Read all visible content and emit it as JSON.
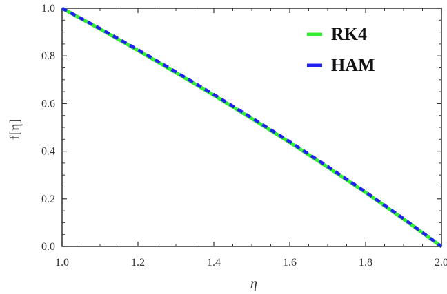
{
  "chart_data": {
    "type": "line",
    "title": "",
    "xlabel": "η",
    "ylabel": "f[η]",
    "xlim": [
      1.0,
      2.0
    ],
    "ylim": [
      0.0,
      1.0
    ],
    "grid": false,
    "legend_position": "top-right",
    "x_ticks": [
      "1.0",
      "1.2",
      "1.4",
      "1.6",
      "1.8",
      "2.0"
    ],
    "y_ticks": [
      "0.0",
      "0.2",
      "0.4",
      "0.6",
      "0.8",
      "1.0"
    ],
    "x": [
      1.0,
      1.1,
      1.2,
      1.3,
      1.4,
      1.5,
      1.6,
      1.7,
      1.8,
      1.9,
      2.0
    ],
    "series": [
      {
        "name": "RK4",
        "color": "#33ee33",
        "style": "solid",
        "values": [
          1.0,
          0.913,
          0.823,
          0.73,
          0.635,
          0.537,
          0.437,
          0.333,
          0.227,
          0.115,
          0.0
        ]
      },
      {
        "name": "HAM",
        "color": "#2222ee",
        "style": "dashed",
        "values": [
          1.0,
          0.915,
          0.826,
          0.733,
          0.638,
          0.54,
          0.44,
          0.336,
          0.229,
          0.117,
          0.0
        ]
      }
    ]
  }
}
